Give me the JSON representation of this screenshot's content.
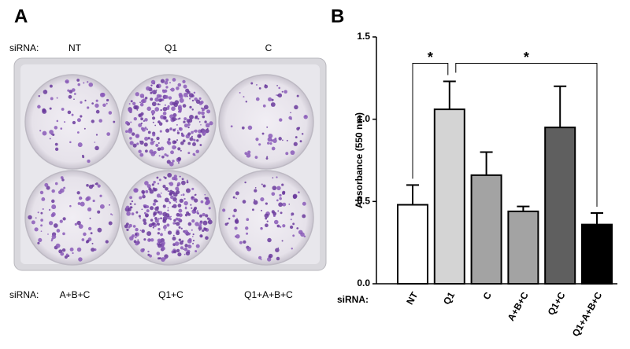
{
  "panel_a": {
    "label": "A",
    "row_label": "siRNA:",
    "top": [
      "NT",
      "Q1",
      "C"
    ],
    "bottom": [
      "A+B+C",
      "Q1+C",
      "Q1+A+B+C"
    ]
  },
  "chart_data": {
    "type": "bar",
    "panel_label": "B",
    "ylabel": "Absorbance (550 nm)",
    "x_prefix": "siRNA:",
    "categories": [
      "NT",
      "Q1",
      "C",
      "A+B+C",
      "Q1+C",
      "Q1+A+B+C"
    ],
    "values": [
      0.48,
      1.06,
      0.66,
      0.44,
      0.95,
      0.36
    ],
    "errors": [
      0.12,
      0.17,
      0.14,
      0.03,
      0.25,
      0.07
    ],
    "colors": [
      "#ffffff",
      "#d4d4d4",
      "#a3a3a3",
      "#a3a3a3",
      "#5f5f5f",
      "#000000"
    ],
    "ylim": [
      0,
      1.5
    ],
    "yticks": [
      {
        "value": 0,
        "label": "0.0"
      },
      0.5,
      {
        "value": 1,
        "label": "1.0"
      },
      1.5
    ],
    "annotations": [
      {
        "text": "*",
        "between": [
          0,
          1
        ]
      },
      {
        "text": "*",
        "between": [
          1,
          5
        ]
      }
    ]
  }
}
